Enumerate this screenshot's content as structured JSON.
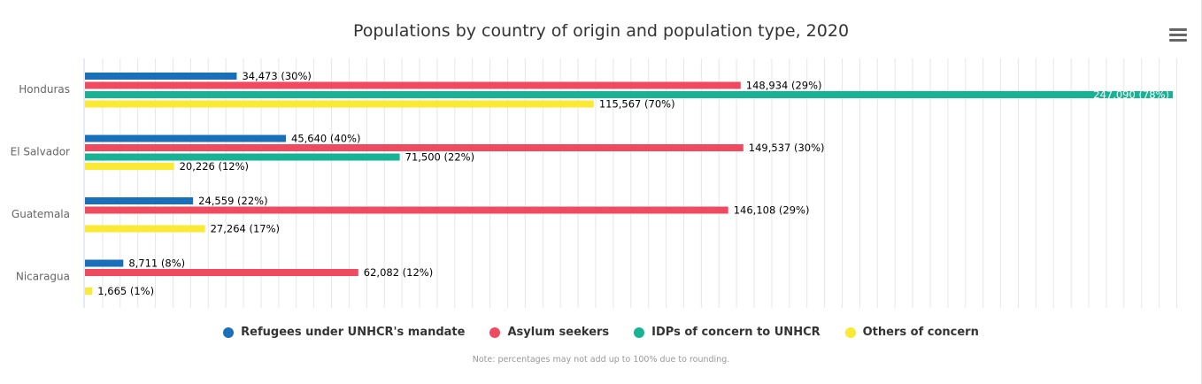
{
  "chart_data": {
    "type": "bar",
    "orientation": "horizontal",
    "title": "Populations by country of origin and population type, 2020",
    "categories": [
      "Honduras",
      "El Salvador",
      "Guatemala",
      "Nicaragua"
    ],
    "xlim": [
      0,
      248000
    ],
    "grid": true,
    "legend_position": "bottom",
    "series": [
      {
        "name": "Refugees under UNHCR's mandate",
        "color": "#1a6fba",
        "values": [
          34473,
          45640,
          24559,
          8711
        ],
        "labels": [
          "34,473 (30%)",
          "45,640 (40%)",
          "24,559 (22%)",
          "8,711 (8%)"
        ]
      },
      {
        "name": "Asylum seekers",
        "color": "#ef4a60",
        "values": [
          148934,
          149537,
          146108,
          62082
        ],
        "labels": [
          "148,934 (29%)",
          "149,537 (30%)",
          "146,108 (29%)",
          "62,082 (12%)"
        ]
      },
      {
        "name": "IDPs of concern to UNHCR",
        "color": "#18b394",
        "values": [
          247090,
          71500,
          null,
          null
        ],
        "labels": [
          "247,090 (78%)",
          "71,500 (22%)",
          null,
          null
        ]
      },
      {
        "name": "Others of concern",
        "color": "#fbea34",
        "values": [
          115567,
          20226,
          27264,
          1665
        ],
        "labels": [
          "115,567 (70%)",
          "20,226 (12%)",
          "27,264 (17%)",
          "1,665 (1%)"
        ]
      }
    ],
    "note": "Note: percentages may not add up to 100% due to rounding."
  },
  "menu_icon": "hamburger-menu-icon"
}
